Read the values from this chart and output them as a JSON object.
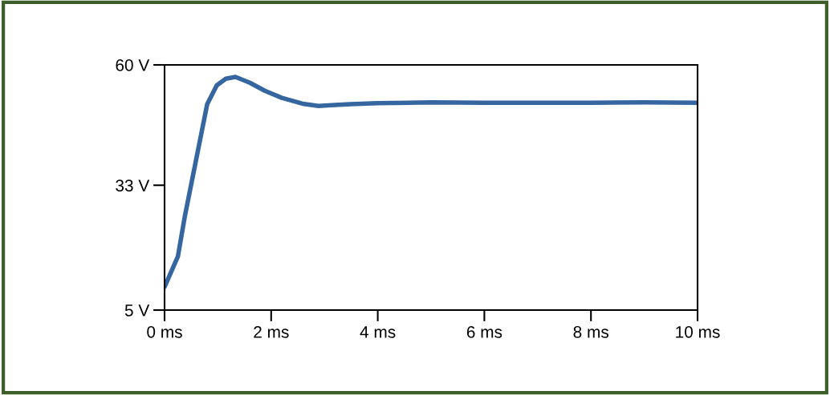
{
  "chart_data": {
    "type": "line",
    "x": [
      0,
      0.25,
      0.38,
      0.53,
      0.68,
      0.8,
      0.98,
      1.15,
      1.33,
      1.6,
      1.88,
      2.2,
      2.59,
      2.89,
      3.2,
      3.49,
      4,
      5,
      6,
      7,
      8,
      9,
      10
    ],
    "series": [
      {
        "color": "#3566a0",
        "values": [
          10.2,
          17.0,
          26.0,
          35.0,
          44.0,
          51.2,
          55.4,
          56.9,
          57.3,
          56.0,
          54.2,
          52.6,
          51.3,
          50.8,
          51.0,
          51.2,
          51.4,
          51.6,
          51.5,
          51.5,
          51.5,
          51.6,
          51.5
        ]
      }
    ],
    "xlim": [
      0,
      10
    ],
    "ylim": [
      5,
      60
    ],
    "xticks": [
      {
        "value": 0,
        "label": "0 ms"
      },
      {
        "value": 2,
        "label": "2 ms"
      },
      {
        "value": 4,
        "label": "4 ms"
      },
      {
        "value": 6,
        "label": "6 ms"
      },
      {
        "value": 8,
        "label": "8 ms"
      },
      {
        "value": 10,
        "label": "10 ms"
      }
    ],
    "yticks": [
      {
        "value": 5,
        "label": "5 V"
      },
      {
        "value": 33,
        "label": "33 V"
      },
      {
        "value": 60,
        "label": "60 V"
      }
    ],
    "grid": false,
    "marker": "none",
    "line_style": "solid"
  }
}
